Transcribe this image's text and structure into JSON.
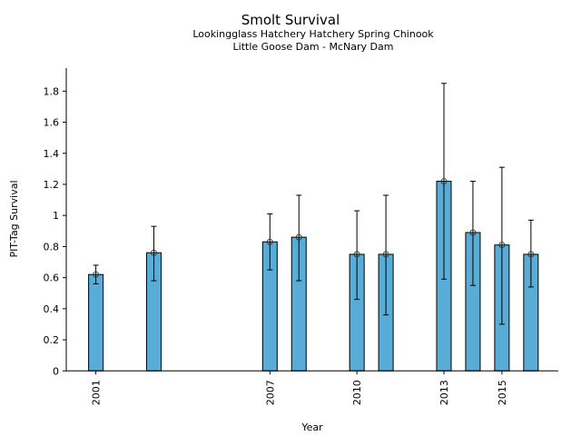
{
  "chart_data": {
    "type": "bar",
    "title": "Smolt Survival",
    "subtitle": [
      "Lookingglass Hatchery Hatchery Spring Chinook",
      "Little Goose Dam - McNary Dam"
    ],
    "xlabel": "Year",
    "ylabel": "PIT-Tag Survival",
    "ylim": [
      0,
      1.95
    ],
    "xlim": [
      2000.0,
      2017.0
    ],
    "yticks": [
      0,
      0.2,
      0.4,
      0.6,
      0.8,
      1,
      1.2,
      1.4,
      1.6,
      1.8
    ],
    "ytick_labels": [
      "0",
      "0.2",
      "0.4",
      "0.6",
      "0.8",
      "1",
      "1.2",
      "1.4",
      "1.6",
      "1.8"
    ],
    "xticks": [
      2001,
      2007,
      2010,
      2013,
      2015
    ],
    "xtick_labels": [
      "2001",
      "2007",
      "2010",
      "2013",
      "2015"
    ],
    "grid": false,
    "bar_color": "#59acd6",
    "series": [
      {
        "name": "Survival",
        "x": [
          2001,
          2003,
          2007,
          2008,
          2010,
          2011,
          2013,
          2014,
          2015,
          2016
        ],
        "values": [
          0.62,
          0.76,
          0.83,
          0.86,
          0.75,
          0.75,
          1.22,
          0.89,
          0.81,
          0.75
        ],
        "err_low": [
          0.56,
          0.58,
          0.65,
          0.58,
          0.46,
          0.36,
          0.59,
          0.55,
          0.3,
          0.54
        ],
        "err_high": [
          0.68,
          0.93,
          1.01,
          1.13,
          1.03,
          1.13,
          1.85,
          1.22,
          1.31,
          0.97
        ]
      }
    ]
  }
}
